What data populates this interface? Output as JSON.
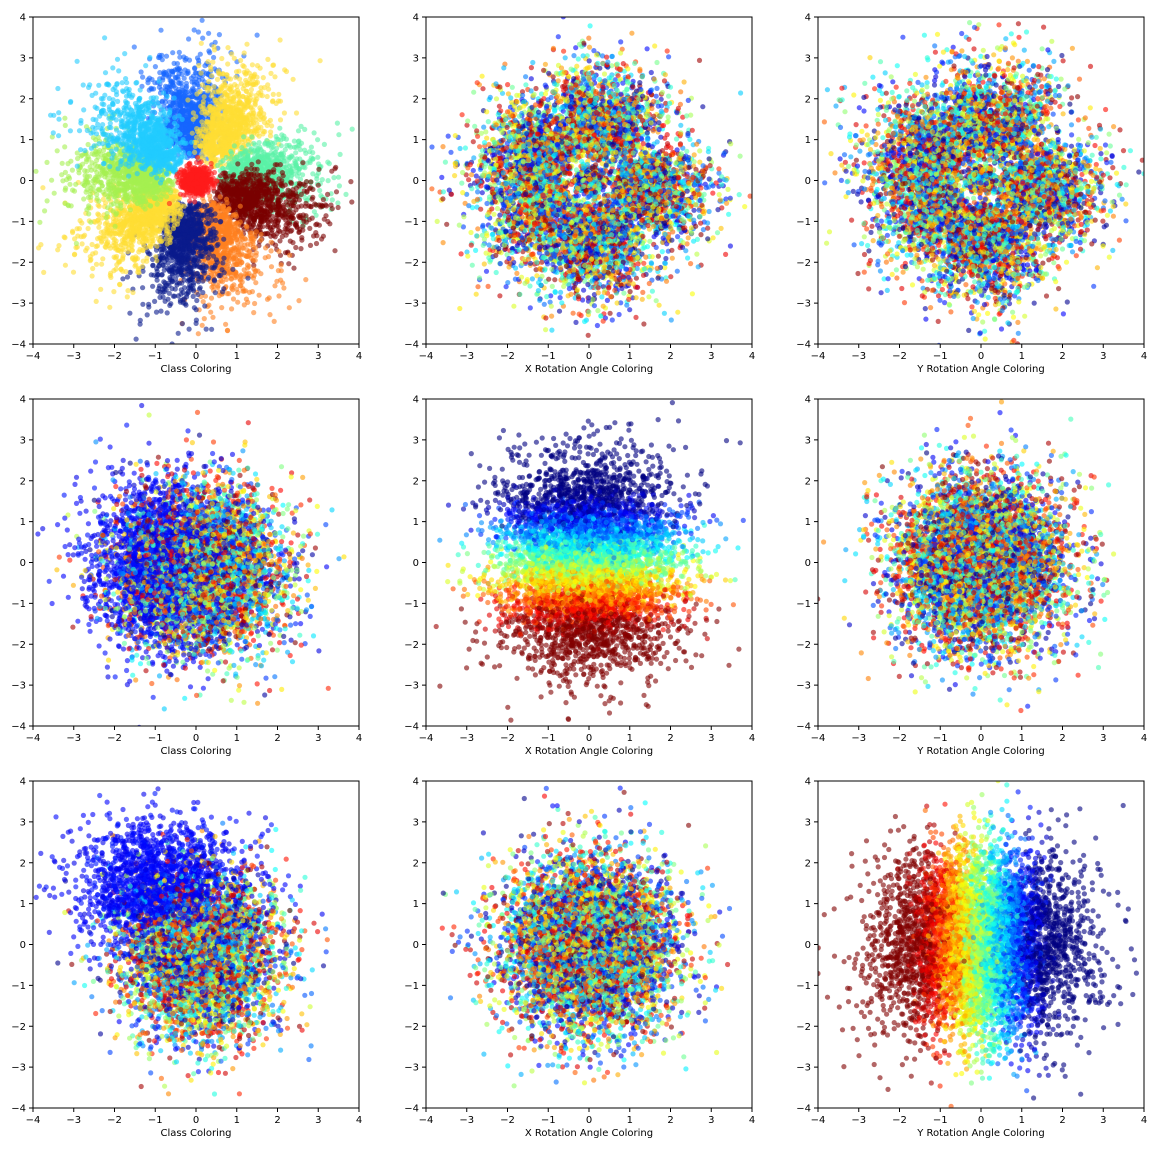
{
  "chart_data": [
    {
      "type": "scatter",
      "pattern": "flower",
      "colorMode": "class",
      "xlabel": "Class Coloring",
      "xlim": [
        -4,
        4
      ],
      "ylim": [
        -4,
        4
      ],
      "xticks": [
        -4,
        -3,
        -2,
        -1,
        0,
        1,
        2,
        3,
        4
      ],
      "yticks": [
        -4,
        -3,
        -2,
        -1,
        0,
        1,
        2,
        3,
        4
      ],
      "grid": false,
      "approx_points": 9000,
      "colormap": "jet",
      "alpha": 0.6,
      "seed": 11
    },
    {
      "type": "scatter",
      "pattern": "flower",
      "colorMode": "random",
      "xlabel": "X Rotation Angle Coloring",
      "xlim": [
        -4,
        4
      ],
      "ylim": [
        -4,
        4
      ],
      "xticks": [
        -4,
        -3,
        -2,
        -1,
        0,
        1,
        2,
        3,
        4
      ],
      "yticks": [
        -4,
        -3,
        -2,
        -1,
        0,
        1,
        2,
        3,
        4
      ],
      "grid": false,
      "approx_points": 9000,
      "colormap": "jet",
      "alpha": 0.6,
      "seed": 11
    },
    {
      "type": "scatter",
      "pattern": "flower",
      "colorMode": "random",
      "xlabel": "Y Rotation Angle Coloring",
      "xlim": [
        -4,
        4
      ],
      "ylim": [
        -4,
        4
      ],
      "xticks": [
        -4,
        -3,
        -2,
        -1,
        0,
        1,
        2,
        3,
        4
      ],
      "yticks": [
        -4,
        -3,
        -2,
        -1,
        0,
        1,
        2,
        3,
        4
      ],
      "grid": false,
      "approx_points": 9000,
      "colormap": "jet",
      "alpha": 0.6,
      "seed": 11
    },
    {
      "type": "scatter",
      "pattern": "gauss",
      "colorMode": "class-left-blue",
      "xlabel": "Class Coloring",
      "xlim": [
        -4,
        4
      ],
      "ylim": [
        -4,
        4
      ],
      "xticks": [
        -4,
        -3,
        -2,
        -1,
        0,
        1,
        2,
        3,
        4
      ],
      "yticks": [
        -4,
        -3,
        -2,
        -1,
        0,
        1,
        2,
        3,
        4
      ],
      "grid": false,
      "approx_points": 6500,
      "colormap": "jet",
      "alpha": 0.6,
      "seed": 23
    },
    {
      "type": "scatter",
      "pattern": "gauss",
      "colorMode": "vertical-gradient",
      "xlabel": "X Rotation Angle Coloring",
      "xlim": [
        -4,
        4
      ],
      "ylim": [
        -4,
        4
      ],
      "xticks": [
        -4,
        -3,
        -2,
        -1,
        0,
        1,
        2,
        3,
        4
      ],
      "yticks": [
        -4,
        -3,
        -2,
        -1,
        0,
        1,
        2,
        3,
        4
      ],
      "grid": false,
      "approx_points": 6500,
      "colormap": "jet",
      "alpha": 0.6,
      "seed": 23
    },
    {
      "type": "scatter",
      "pattern": "gauss",
      "colorMode": "random",
      "xlabel": "Y Rotation Angle Coloring",
      "xlim": [
        -4,
        4
      ],
      "ylim": [
        -4,
        4
      ],
      "xticks": [
        -4,
        -3,
        -2,
        -1,
        0,
        1,
        2,
        3,
        4
      ],
      "yticks": [
        -4,
        -3,
        -2,
        -1,
        0,
        1,
        2,
        3,
        4
      ],
      "grid": false,
      "approx_points": 6500,
      "colormap": "jet",
      "alpha": 0.6,
      "seed": 23
    },
    {
      "type": "scatter",
      "pattern": "gauss",
      "colorMode": "class-upper-blue",
      "xlabel": "Class Coloring",
      "xlim": [
        -4,
        4
      ],
      "ylim": [
        -4,
        4
      ],
      "xticks": [
        -4,
        -3,
        -2,
        -1,
        0,
        1,
        2,
        3,
        4
      ],
      "yticks": [
        -4,
        -3,
        -2,
        -1,
        0,
        1,
        2,
        3,
        4
      ],
      "grid": false,
      "approx_points": 6500,
      "colormap": "jet",
      "alpha": 0.6,
      "seed": 37
    },
    {
      "type": "scatter",
      "pattern": "gauss",
      "colorMode": "random",
      "xlabel": "X Rotation Angle Coloring",
      "xlim": [
        -4,
        4
      ],
      "ylim": [
        -4,
        4
      ],
      "xticks": [
        -4,
        -3,
        -2,
        -1,
        0,
        1,
        2,
        3,
        4
      ],
      "yticks": [
        -4,
        -3,
        -2,
        -1,
        0,
        1,
        2,
        3,
        4
      ],
      "grid": false,
      "approx_points": 6500,
      "colormap": "jet",
      "alpha": 0.6,
      "seed": 37
    },
    {
      "type": "scatter",
      "pattern": "gauss",
      "colorMode": "angle-gradient",
      "xlabel": "Y Rotation Angle Coloring",
      "xlim": [
        -4,
        4
      ],
      "ylim": [
        -4,
        4
      ],
      "xticks": [
        -4,
        -3,
        -2,
        -1,
        0,
        1,
        2,
        3,
        4
      ],
      "yticks": [
        -4,
        -3,
        -2,
        -1,
        0,
        1,
        2,
        3,
        4
      ],
      "grid": false,
      "approx_points": 6500,
      "colormap": "jet",
      "alpha": 0.6,
      "seed": 37
    }
  ],
  "flower_petal_colors": [
    "#1565ff",
    "#ffdd33",
    "#5af2a6",
    "#7a0000",
    "#ff8020",
    "#0a1a8c",
    "#ffdd33",
    "#a5f050",
    "#22ccff"
  ]
}
